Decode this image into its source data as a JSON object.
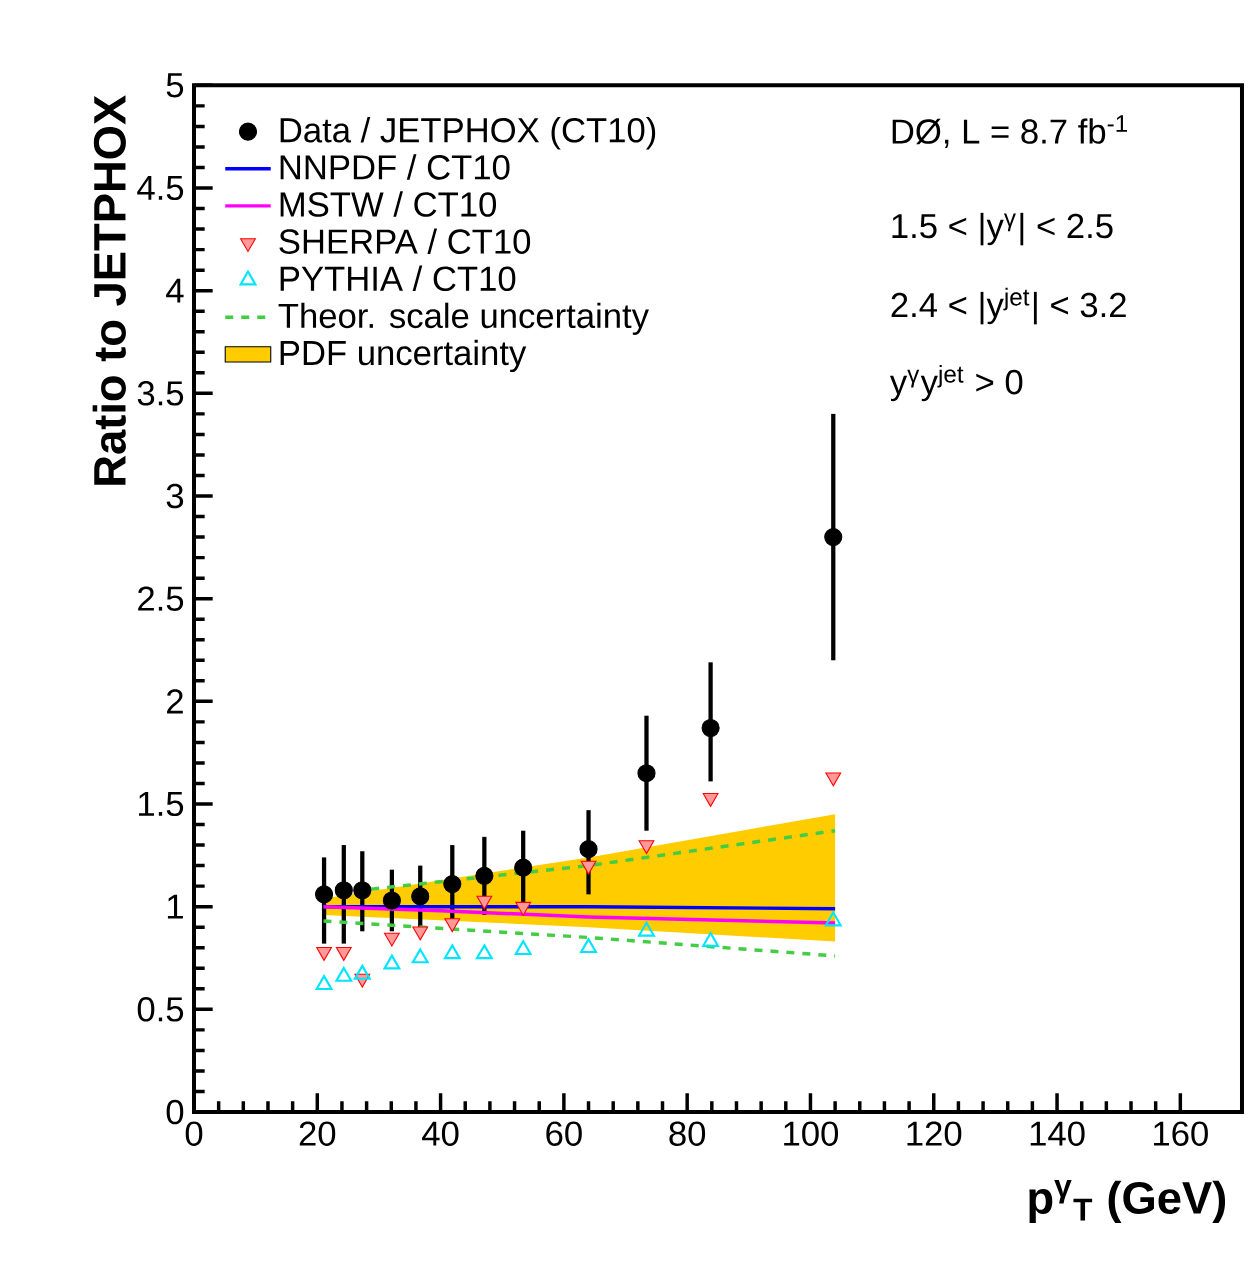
{
  "chart_data": {
    "type": "scatter",
    "xlabel": "p$^{γ}$$_{T}$ (GeV)",
    "ylabel": "Ratio to JETPHOX",
    "xlim": [
      0,
      170
    ],
    "ylim": [
      0,
      5
    ],
    "xticks": [
      0,
      20,
      40,
      60,
      80,
      100,
      120,
      140,
      160
    ],
    "yticks": [
      0,
      0.5,
      1,
      1.5,
      2,
      2.5,
      3,
      3.5,
      4,
      4.5,
      5
    ],
    "grid": false,
    "legend": "top left",
    "annotations": [
      "DØ, L = 8.7 fb$^{-1}$",
      "1.5 < |y$^{γ}$| < 2.5",
      "2.4 < |y$^{jet}$| < 3.2",
      "y$^{γ}$y$^{jet}$ > 0"
    ],
    "series": [
      {
        "name": "Data / JETPHOX (CT10)",
        "marker": "circle",
        "color": "#000000",
        "x": [
          21.1,
          24.3,
          27.3,
          32.1,
          36.7,
          41.9,
          47.1,
          53.4,
          64,
          73.4,
          83.8,
          103.7
        ],
        "values": [
          1.06,
          1.08,
          1.08,
          1.03,
          1.05,
          1.11,
          1.15,
          1.19,
          1.28,
          1.65,
          1.87,
          2.8
        ],
        "errors": [
          [
            0.82,
            1.24
          ],
          [
            0.82,
            1.3
          ],
          [
            0.88,
            1.27
          ],
          [
            0.88,
            1.18
          ],
          [
            0.9,
            1.2
          ],
          [
            0.92,
            1.3
          ],
          [
            0.96,
            1.34
          ],
          [
            1.0,
            1.37
          ],
          [
            1.06,
            1.47
          ],
          [
            1.37,
            1.93
          ],
          [
            1.61,
            2.19
          ],
          [
            2.2,
            3.4
          ]
        ]
      },
      {
        "name": "NNPDF / CT10",
        "type": "line",
        "color": "#0000ff",
        "line_style": "solid",
        "x": [
          21,
          40,
          64,
          104
        ],
        "values": [
          1.0,
          1.0,
          1.0,
          0.99
        ]
      },
      {
        "name": "MSTW  / CT10",
        "type": "line",
        "color": "#ff00ff",
        "line_style": "solid",
        "x": [
          21,
          40,
          64,
          104
        ],
        "values": [
          1.0,
          0.98,
          0.95,
          0.92
        ]
      },
      {
        "name": "SHERPA / CT10",
        "marker": "triangle-down",
        "color": "#ff0000",
        "x": [
          21.1,
          24.3,
          27.3,
          32.1,
          36.7,
          41.9,
          47.1,
          53.4,
          64,
          73.4,
          83.8,
          103.7
        ],
        "values": [
          0.78,
          0.78,
          0.65,
          0.85,
          0.88,
          0.92,
          1.03,
          1.0,
          1.2,
          1.3,
          1.53,
          1.63
        ]
      },
      {
        "name": "PYTHIA / CT10",
        "marker": "triangle",
        "color": "#00e5ff",
        "x": [
          21.1,
          24.3,
          27.3,
          32.1,
          36.7,
          41.9,
          47.1,
          53.4,
          64,
          73.4,
          83.8,
          103.7
        ],
        "values": [
          0.62,
          0.66,
          0.67,
          0.72,
          0.75,
          0.77,
          0.77,
          0.79,
          0.8,
          0.88,
          0.83,
          0.93
        ]
      },
      {
        "name": "Theor. scale uncertainty",
        "type": "line",
        "color": "#44cc44",
        "line_style": "dashed",
        "x": [
          21,
          64,
          104
        ],
        "values": [
          1.06,
          1.2,
          1.37
        ]
      },
      {
        "type": "line",
        "color": "#44cc44",
        "line_style": "dashed",
        "x": [
          21,
          64,
          104
        ],
        "values": [
          0.93,
          0.85,
          0.76
        ]
      },
      {
        "name": "PDF uncertainty",
        "type": "area",
        "color": "#ffcc00",
        "x": [
          21,
          64,
          104
        ],
        "values": [
          null,
          null,
          null
        ],
        "lower": [
          0.96,
          0.9,
          0.83
        ],
        "upper": [
          1.04,
          1.24,
          1.45
        ]
      }
    ]
  }
}
